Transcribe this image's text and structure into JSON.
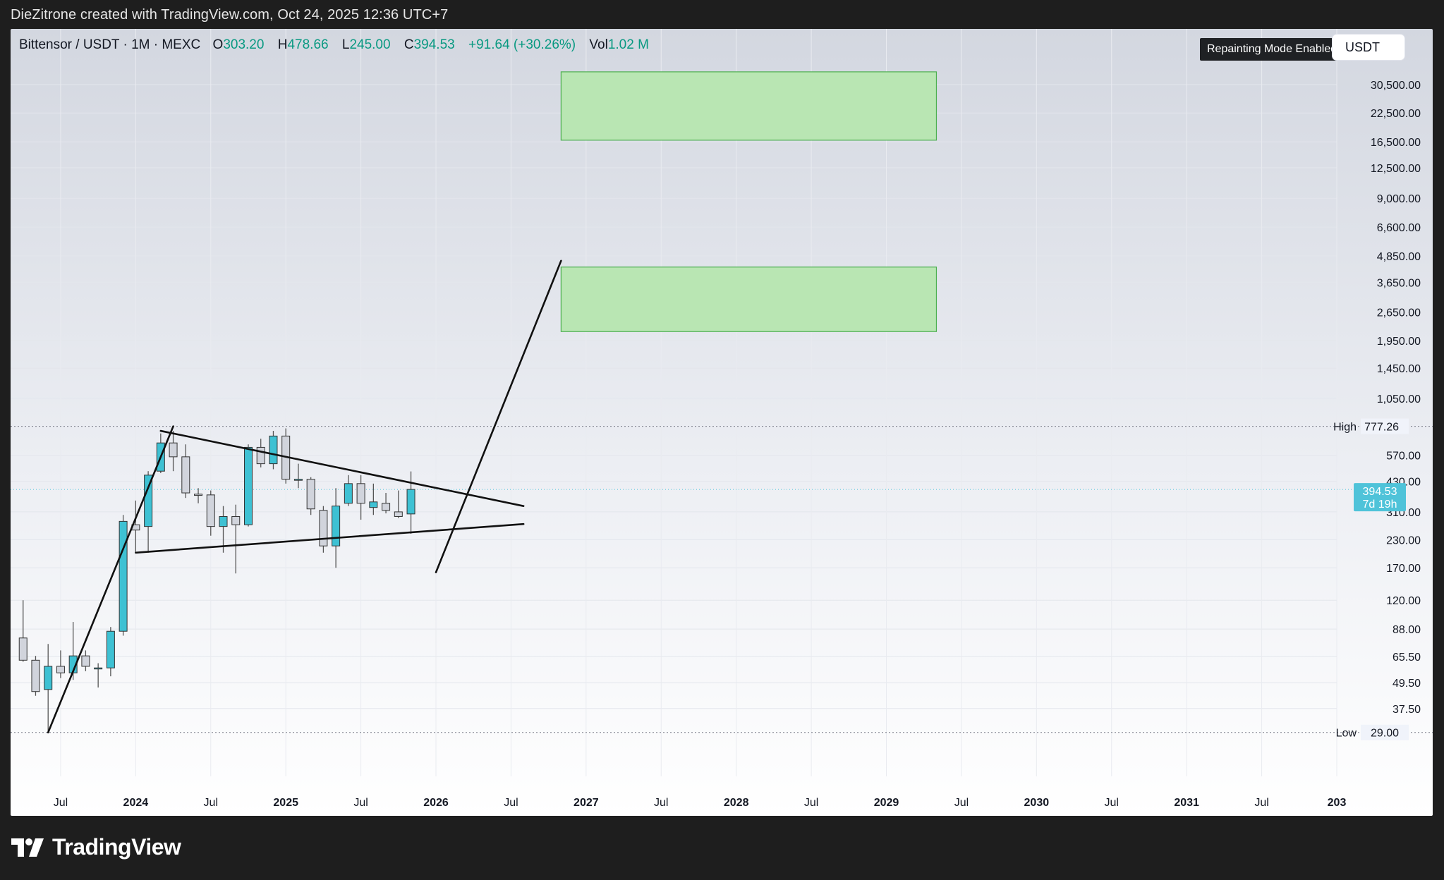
{
  "header": {
    "caption": "DieZitrone created with TradingView.com, Oct 24, 2025 12:36 UTC+7"
  },
  "legend": {
    "symbol": "Bittensor / USDT · 1M · MEXC",
    "o_label": "O",
    "o_value": "303.20",
    "h_label": "H",
    "h_value": "478.66",
    "l_label": "L",
    "l_value": "245.00",
    "c_label": "C",
    "c_value": "394.53",
    "change": "+91.64 (+30.26%)",
    "vol_label": "Vol",
    "vol_value": "1.02 M"
  },
  "toolbar": {
    "repaint_badge": "Repainting Mode Enabled",
    "currency": "USDT"
  },
  "brand": {
    "name": "TradingView"
  },
  "colors": {
    "up": "#3ec1d3",
    "down": "#d1d4dc",
    "wick": "#555555",
    "zone_fill": "#b9e6b3",
    "zone_stroke": "#4caf50",
    "line": "#111111",
    "last_price_bg": "#4fc3d9"
  },
  "chart_data": {
    "type": "candlestick",
    "scale": "log",
    "ylim": [
      24.5,
      41000
    ],
    "xlim": [
      "2023-03",
      "2032-01"
    ],
    "price_axis": [
      "30,500.00",
      "22,500.00",
      "16,500.00",
      "12,500.00",
      "9,000.00",
      "6,600.00",
      "4,850.00",
      "3,650.00",
      "2,650.00",
      "1,950.00",
      "1,450.00",
      "1,050.00",
      "570.00",
      "430.00",
      "310.00",
      "230.00",
      "170.00",
      "120.00",
      "88.00",
      "65.50",
      "49.50",
      "37.50"
    ],
    "time_axis": [
      {
        "label": "Jul",
        "t": "2023-07"
      },
      {
        "label": "2024",
        "t": "2024-01",
        "bold": true
      },
      {
        "label": "Jul",
        "t": "2024-07"
      },
      {
        "label": "2025",
        "t": "2025-01",
        "bold": true
      },
      {
        "label": "Jul",
        "t": "2025-07"
      },
      {
        "label": "2026",
        "t": "2026-01",
        "bold": true
      },
      {
        "label": "Jul",
        "t": "2026-07"
      },
      {
        "label": "2027",
        "t": "2027-01",
        "bold": true
      },
      {
        "label": "Jul",
        "t": "2027-07"
      },
      {
        "label": "2028",
        "t": "2028-01",
        "bold": true
      },
      {
        "label": "Jul",
        "t": "2028-07"
      },
      {
        "label": "2029",
        "t": "2029-01",
        "bold": true
      },
      {
        "label": "Jul",
        "t": "2029-07"
      },
      {
        "label": "2030",
        "t": "2030-01",
        "bold": true
      },
      {
        "label": "Jul",
        "t": "2030-07"
      },
      {
        "label": "2031",
        "t": "2031-01",
        "bold": true
      },
      {
        "label": "Jul",
        "t": "2031-07"
      },
      {
        "label": "203",
        "t": "2032-01",
        "bold": true
      }
    ],
    "candles": [
      {
        "t": "2023-04",
        "o": 80,
        "h": 120,
        "l": 62,
        "c": 63
      },
      {
        "t": "2023-05",
        "o": 63,
        "h": 66,
        "l": 43,
        "c": 45
      },
      {
        "t": "2023-06",
        "o": 46,
        "h": 75,
        "l": 29,
        "c": 59
      },
      {
        "t": "2023-07",
        "o": 59,
        "h": 70,
        "l": 52,
        "c": 55
      },
      {
        "t": "2023-08",
        "o": 55,
        "h": 95,
        "l": 51,
        "c": 66
      },
      {
        "t": "2023-09",
        "o": 66,
        "h": 70,
        "l": 56,
        "c": 59
      },
      {
        "t": "2023-10",
        "o": 58,
        "h": 61,
        "l": 47,
        "c": 58
      },
      {
        "t": "2023-11",
        "o": 58,
        "h": 90,
        "l": 53,
        "c": 86
      },
      {
        "t": "2023-12",
        "o": 86,
        "h": 300,
        "l": 82,
        "c": 280
      },
      {
        "t": "2024-01",
        "o": 270,
        "h": 350,
        "l": 200,
        "c": 255
      },
      {
        "t": "2024-02",
        "o": 265,
        "h": 480,
        "l": 200,
        "c": 460
      },
      {
        "t": "2024-03",
        "o": 480,
        "h": 720,
        "l": 470,
        "c": 650
      },
      {
        "t": "2024-04",
        "o": 650,
        "h": 740,
        "l": 480,
        "c": 560
      },
      {
        "t": "2024-05",
        "o": 560,
        "h": 640,
        "l": 360,
        "c": 380
      },
      {
        "t": "2024-06",
        "o": 375,
        "h": 400,
        "l": 340,
        "c": 370
      },
      {
        "t": "2024-07",
        "o": 372,
        "h": 390,
        "l": 240,
        "c": 265
      },
      {
        "t": "2024-08",
        "o": 265,
        "h": 330,
        "l": 200,
        "c": 295
      },
      {
        "t": "2024-09",
        "o": 295,
        "h": 335,
        "l": 160,
        "c": 270
      },
      {
        "t": "2024-10",
        "o": 270,
        "h": 640,
        "l": 265,
        "c": 620
      },
      {
        "t": "2024-11",
        "o": 620,
        "h": 680,
        "l": 500,
        "c": 520
      },
      {
        "t": "2024-12",
        "o": 520,
        "h": 740,
        "l": 490,
        "c": 700
      },
      {
        "t": "2025-01",
        "o": 700,
        "h": 760,
        "l": 420,
        "c": 440
      },
      {
        "t": "2025-02",
        "o": 440,
        "h": 520,
        "l": 400,
        "c": 440
      },
      {
        "t": "2025-03",
        "o": 440,
        "h": 450,
        "l": 300,
        "c": 320
      },
      {
        "t": "2025-04",
        "o": 315,
        "h": 330,
        "l": 200,
        "c": 215
      },
      {
        "t": "2025-05",
        "o": 215,
        "h": 400,
        "l": 170,
        "c": 330
      },
      {
        "t": "2025-06",
        "o": 340,
        "h": 460,
        "l": 330,
        "c": 420
      },
      {
        "t": "2025-07",
        "o": 420,
        "h": 460,
        "l": 285,
        "c": 340
      },
      {
        "t": "2025-08",
        "o": 325,
        "h": 420,
        "l": 300,
        "c": 345
      },
      {
        "t": "2025-09",
        "o": 340,
        "h": 380,
        "l": 305,
        "c": 315
      },
      {
        "t": "2025-10",
        "o": 310,
        "h": 390,
        "l": 290,
        "c": 295
      },
      {
        "t": "2025-11",
        "o": 303.2,
        "h": 478.66,
        "l": 245,
        "c": 394.53
      }
    ],
    "high_marker": {
      "label": "High",
      "value": "777.26",
      "price": 777.26
    },
    "low_marker": {
      "label": "Low",
      "value": "29.00",
      "price": 29
    },
    "last_price": {
      "value": "394.53",
      "countdown": "7d 19h",
      "price": 394.53
    },
    "zones": [
      {
        "t1": "2026-11",
        "t2": "2029-05",
        "low": 16800,
        "high": 35000
      },
      {
        "t1": "2026-11",
        "t2": "2029-05",
        "low": 2150,
        "high": 4300
      }
    ],
    "lines": [
      {
        "t1": "2023-06",
        "p1": 29,
        "t2": "2024-04",
        "p2": 777
      },
      {
        "t1": "2024-03",
        "p1": 740,
        "t2": "2026-08",
        "p2": 330
      },
      {
        "t1": "2024-01",
        "p1": 200,
        "t2": "2026-08",
        "p2": 272
      },
      {
        "t1": "2026-01",
        "p1": 162,
        "t2": "2026-11",
        "p2": 4600
      }
    ]
  }
}
